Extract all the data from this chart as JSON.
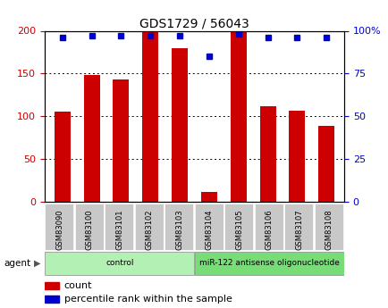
{
  "title": "GDS1729 / 56043",
  "samples": [
    "GSM83090",
    "GSM83100",
    "GSM83101",
    "GSM83102",
    "GSM83103",
    "GSM83104",
    "GSM83105",
    "GSM83106",
    "GSM83107",
    "GSM83108"
  ],
  "counts": [
    105,
    148,
    143,
    198,
    180,
    11,
    198,
    112,
    107,
    89
  ],
  "percentile_ranks": [
    96,
    97,
    97,
    97,
    97,
    85,
    98,
    96,
    96,
    96
  ],
  "groups": [
    {
      "label": "control",
      "start": 0,
      "end": 4,
      "color": "#b3f0b3"
    },
    {
      "label": "miR-122 antisense oligonucleotide",
      "start": 5,
      "end": 9,
      "color": "#77dd77"
    }
  ],
  "ylim_left": [
    0,
    200
  ],
  "ylim_right": [
    0,
    100
  ],
  "yticks_left": [
    0,
    50,
    100,
    150,
    200
  ],
  "yticks_right": [
    0,
    25,
    50,
    75,
    100
  ],
  "ytick_labels_left": [
    "0",
    "50",
    "100",
    "150",
    "200"
  ],
  "ytick_labels_right": [
    "0",
    "25",
    "50",
    "75",
    "100%"
  ],
  "bar_color": "#cc0000",
  "dot_color": "#0000cc",
  "background_color": "#ffffff",
  "legend_count_color": "#cc0000",
  "legend_pct_color": "#0000cc",
  "agent_label": "agent",
  "tick_label_bg": "#c8c8c8",
  "grid_dotted_at": [
    50,
    100,
    150
  ],
  "bar_width": 0.55
}
